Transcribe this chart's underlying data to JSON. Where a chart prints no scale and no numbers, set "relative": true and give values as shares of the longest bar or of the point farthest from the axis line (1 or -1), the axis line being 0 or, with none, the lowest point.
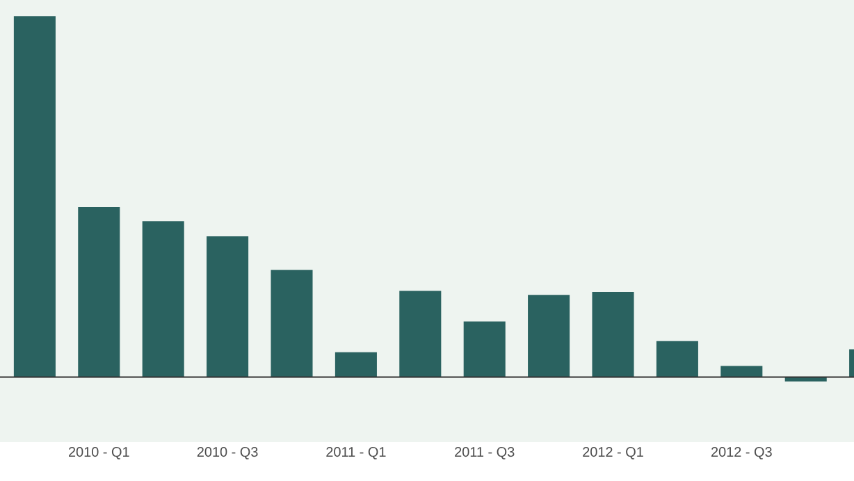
{
  "chart_data": {
    "type": "bar",
    "relative": true,
    "color": "#2a6260",
    "categories": [
      null,
      "2010 - Q1",
      null,
      "2010 - Q3",
      null,
      "2011 - Q1",
      null,
      "2011 - Q3",
      null,
      "2012 - Q1",
      null,
      "2012 - Q3",
      null,
      null
    ],
    "values": [
      1,
      0.471,
      0.432,
      0.39,
      0.297,
      0.069,
      0.239,
      0.154,
      0.228,
      0.236,
      0.1,
      0.031,
      -0.012,
      0.077
    ]
  }
}
